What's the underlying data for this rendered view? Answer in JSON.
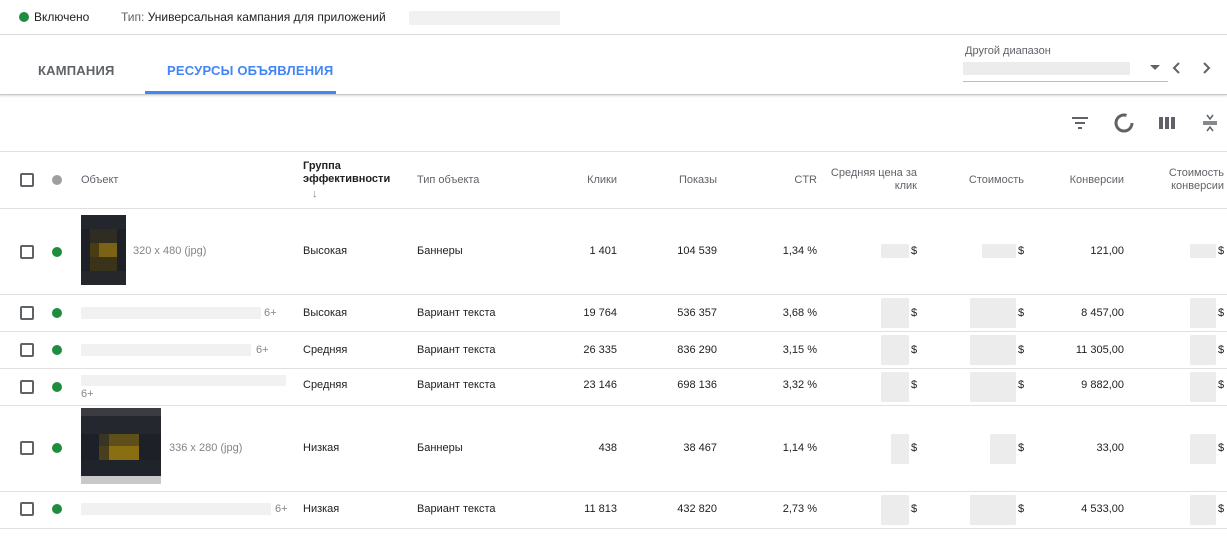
{
  "status": {
    "state": "Включено",
    "type_label": "Тип:",
    "type_value": "Универсальная кампания для приложений"
  },
  "tabs": [
    {
      "label": "Кампания",
      "active": false
    },
    {
      "label": "Ресурсы объявления",
      "active": true
    }
  ],
  "date_range": {
    "label": "Другой диапазон"
  },
  "toolbar": {
    "icons": [
      "filter-icon",
      "segment-icon",
      "columns-icon",
      "density-icon"
    ]
  },
  "table": {
    "headers": {
      "object": "Объект",
      "performance_line1": "Группа",
      "performance_line2": "эффективности",
      "type": "Тип объекта",
      "clicks": "Клики",
      "impressions": "Показы",
      "ctr": "CTR",
      "cpc_line1": "Средняя цена за",
      "cpc_line2": "клик",
      "cost": "Стоимость",
      "conversions": "Конверсии",
      "cost_per_conv_line1": "Стоимость",
      "cost_per_conv_line2": "конверсии"
    },
    "sort_icon": "↓",
    "currency": "$",
    "rows": [
      {
        "meta": "320 x 480 (jpg)",
        "performance": "Высокая",
        "type": "Баннеры",
        "clicks": "1 401",
        "impressions": "104 539",
        "ctr": "1,34 %",
        "conversions": "121,00"
      },
      {
        "meta": "6+",
        "performance": "Высокая",
        "type": "Вариант текста",
        "clicks": "19 764",
        "impressions": "536 357",
        "ctr": "3,68 %",
        "conversions": "8 457,00"
      },
      {
        "meta": "6+",
        "performance": "Средняя",
        "type": "Вариант текста",
        "clicks": "26 335",
        "impressions": "836 290",
        "ctr": "3,15 %",
        "conversions": "11 305,00"
      },
      {
        "meta": "6+",
        "performance": "Средняя",
        "type": "Вариант текста",
        "clicks": "23 146",
        "impressions": "698 136",
        "ctr": "3,32 %",
        "conversions": "9 882,00"
      },
      {
        "meta": "336 x 280 (jpg)",
        "performance": "Низкая",
        "type": "Баннеры",
        "clicks": "438",
        "impressions": "38 467",
        "ctr": "1,14 %",
        "conversions": "33,00"
      },
      {
        "meta": "6+",
        "performance": "Низкая",
        "type": "Вариант текста",
        "clicks": "11 813",
        "impressions": "432 820",
        "ctr": "2,73 %",
        "conversions": "4 533,00"
      }
    ]
  },
  "colors": {
    "accent": "#4285f4",
    "enabled": "#1e8e3e",
    "border": "#e0e0e0",
    "muted_text": "#5f6368"
  }
}
